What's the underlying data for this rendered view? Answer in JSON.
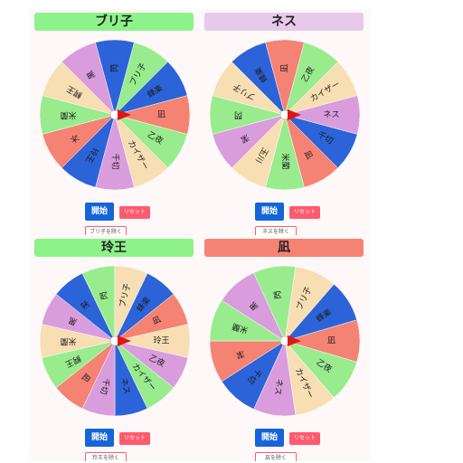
{
  "colors": [
    "#f48374",
    "#99ec8e",
    "#f7deb3",
    "#d99ddd",
    "#2c63d8"
  ],
  "panels": [
    {
      "title": "ブリ子",
      "title_color": "#8ef28a",
      "start_label": "開始",
      "reset_label": "リセット",
      "limit_label": "ブリ子を除く",
      "segments": [
        "凪",
        "乙夜",
        "カイザー",
        "千切",
        "玲王",
        "冰",
        "米蘭",
        "鰐王",
        "黒",
        "閃",
        "ブリ子",
        "蜂楽"
      ],
      "segment_colors": [
        0,
        1,
        2,
        3,
        4,
        0,
        1,
        2,
        3,
        4,
        1,
        4
      ]
    },
    {
      "title": "ネス",
      "title_color": "#e7c9ea",
      "start_label": "開始",
      "reset_label": "リセット",
      "limit_label": "ネスを除く",
      "segments": [
        "ネス",
        "千切",
        "凪",
        "米蘭",
        "玉川",
        "潔",
        "閃",
        "ブリ子",
        "蜂楽",
        "凪",
        "乙夜",
        "カイザー"
      ],
      "segment_colors": [
        3,
        4,
        0,
        1,
        2,
        3,
        1,
        2,
        4,
        0,
        1,
        2
      ]
    },
    {
      "title": "玲王",
      "title_color": "#8ef28a",
      "start_label": "開始",
      "reset_label": "リセット",
      "limit_label": "玲王を除く",
      "segments": [
        "玲王",
        "乙夜",
        "カイザー",
        "ネス",
        "千切",
        "凪",
        "鰐王",
        "米蘭",
        "黒",
        "潔",
        "閃",
        "ブリ子",
        "蜂楽",
        "凪"
      ],
      "segment_colors": [
        2,
        3,
        1,
        4,
        3,
        0,
        1,
        2,
        3,
        4,
        1,
        2,
        4,
        0
      ]
    },
    {
      "title": "凪",
      "title_color": "#f48374",
      "start_label": "開始",
      "reset_label": "リセット",
      "limit_label": "凪を除く",
      "segments": [
        "凪",
        "乙夜",
        "カイザー",
        "ネス",
        "千切",
        "潔",
        "米蘭",
        "黒",
        "閃",
        "ブリ子",
        "蜂楽"
      ],
      "segment_colors": [
        0,
        1,
        2,
        3,
        4,
        0,
        1,
        3,
        1,
        2,
        4
      ]
    }
  ]
}
